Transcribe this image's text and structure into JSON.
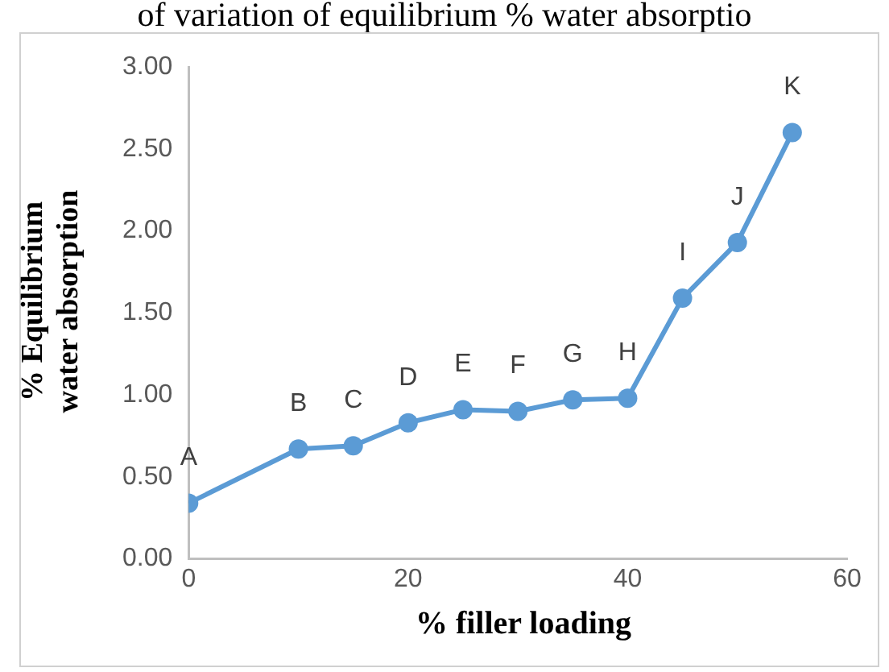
{
  "chart_data": {
    "type": "line",
    "title": "of variation of equilibrium % water absorptio",
    "xlabel": "% filler loading",
    "ylabel": "% Equilibrium water absorption",
    "x": [
      0,
      10,
      15,
      20,
      25,
      30,
      35,
      40,
      45,
      50,
      55
    ],
    "series": [
      {
        "color": "#5b9bd5",
        "values": [
          0.34,
          0.67,
          0.69,
          0.83,
          0.91,
          0.9,
          0.97,
          0.98,
          1.59,
          1.93,
          2.6
        ]
      }
    ],
    "xlim": [
      0,
      60
    ],
    "xticks": [
      0,
      20,
      40,
      60
    ],
    "ylim": [
      0,
      3
    ],
    "yticks": [
      {
        "value": 0,
        "label": "0.00"
      },
      {
        "value": 0.5,
        "label": "0.50"
      },
      {
        "value": 1,
        "label": "1.00"
      },
      {
        "value": 1.5,
        "label": "1.50"
      },
      {
        "value": 2,
        "label": "2.00"
      },
      {
        "value": 2.5,
        "label": "2.50"
      },
      {
        "value": 3,
        "label": "3.00"
      }
    ],
    "grid": false,
    "legend": false,
    "marker": "circle",
    "line_style": "solid",
    "annotations": [
      {
        "text": "A",
        "x": 0,
        "y": 0.34
      },
      {
        "text": "B",
        "x": 10,
        "y": 0.67
      },
      {
        "text": "C",
        "x": 15,
        "y": 0.69
      },
      {
        "text": "D",
        "x": 20,
        "y": 0.83
      },
      {
        "text": "E",
        "x": 25,
        "y": 0.91
      },
      {
        "text": "F",
        "x": 30,
        "y": 0.9
      },
      {
        "text": "G",
        "x": 35,
        "y": 0.97
      },
      {
        "text": "H",
        "x": 40,
        "y": 0.98
      },
      {
        "text": "I",
        "x": 45,
        "y": 1.59
      },
      {
        "text": "J",
        "x": 50,
        "y": 1.93
      },
      {
        "text": "K",
        "x": 55,
        "y": 2.6
      }
    ]
  }
}
